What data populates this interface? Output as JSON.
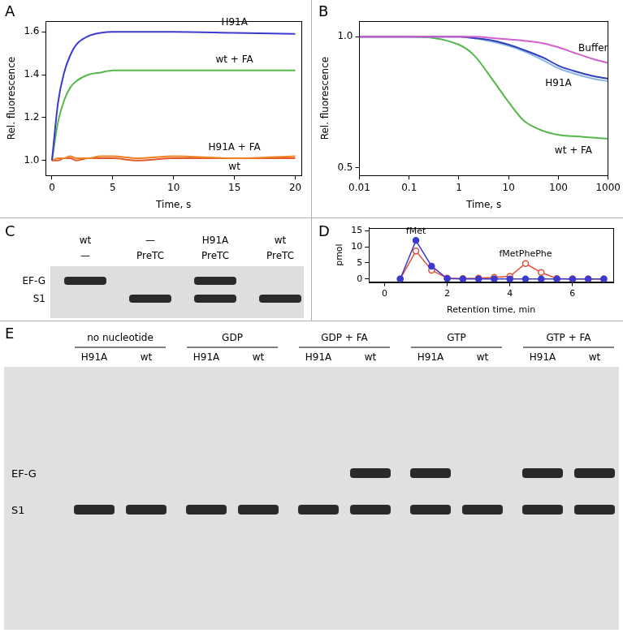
{
  "chart_data": [
    {
      "type": "line",
      "title": "A",
      "x_label": "Time, s",
      "y_label": "Rel. fluorescence",
      "x": [
        0,
        0.5,
        1,
        1.5,
        2,
        3,
        4,
        5,
        7,
        10,
        15,
        20
      ],
      "xlim": [
        -0.5,
        20.5
      ],
      "xticks": [
        0,
        5,
        10,
        15,
        20
      ],
      "ylim": [
        0.93,
        1.65
      ],
      "yticks": [
        {
          "value": 1,
          "label": "1.0"
        },
        1.2,
        1.4,
        1.6
      ],
      "grid": false,
      "series": [
        {
          "name": "H91A",
          "color": "#3a3acf",
          "line_style": "solid",
          "values": [
            1.0,
            1.27,
            1.41,
            1.49,
            1.54,
            1.58,
            1.595,
            1.6,
            1.6,
            1.6,
            1.595,
            1.59
          ]
        },
        {
          "name": "wt + FA",
          "color": "#55b84a",
          "line_style": "solid",
          "values": [
            1.0,
            1.18,
            1.28,
            1.34,
            1.37,
            1.4,
            1.41,
            1.42,
            1.42,
            1.42,
            1.42,
            1.42
          ]
        },
        {
          "name": "H91A + FA",
          "color": "#f08020",
          "line_style": "solid",
          "values": [
            1.0,
            1.01,
            1.01,
            1.02,
            1.01,
            1.01,
            1.02,
            1.02,
            1.01,
            1.02,
            1.01,
            1.02
          ]
        },
        {
          "name": "wt",
          "color": "#e05a30",
          "line_style": "solid",
          "values": [
            1.0,
            1.0,
            1.01,
            1.01,
            1.0,
            1.01,
            1.01,
            1.01,
            1.0,
            1.01,
            1.01,
            1.01
          ]
        }
      ]
    },
    {
      "type": "line",
      "title": "B",
      "x_label": "Time, s",
      "y_label": "Rel. fluorescence",
      "log": "x",
      "x": [
        0.01,
        0.1,
        1,
        2,
        5,
        10,
        20,
        50,
        100,
        200,
        500,
        1000
      ],
      "xlim": [
        0.01,
        1000
      ],
      "xticks": [
        0.01,
        0.1,
        1,
        10,
        100,
        1000
      ],
      "ylim": [
        0.47,
        1.06
      ],
      "yticks": [
        0.5,
        {
          "value": 1,
          "label": "1.0"
        }
      ],
      "grid": false,
      "series": [
        {
          "name": "Buffer",
          "color": "#d060d0",
          "line_style": "solid",
          "values": [
            1,
            1,
            1,
            1,
            0.995,
            0.99,
            0.985,
            0.975,
            0.96,
            0.94,
            0.915,
            0.9
          ]
        },
        {
          "name": "H91A",
          "color": "#2f3fb8",
          "line_style": "solid",
          "values": [
            1,
            1,
            1,
            0.995,
            0.985,
            0.97,
            0.95,
            0.92,
            0.89,
            0.87,
            0.85,
            0.84
          ]
        },
        {
          "color": "#8ab4e8",
          "line_style": "solid",
          "values": [
            1,
            1,
            1,
            0.995,
            0.98,
            0.965,
            0.945,
            0.91,
            0.88,
            0.86,
            0.84,
            0.83
          ]
        },
        {
          "name": "wt + FA",
          "color": "#55b84a",
          "line_style": "solid",
          "values": [
            1,
            1,
            0.97,
            0.93,
            0.83,
            0.75,
            0.68,
            0.64,
            0.625,
            0.62,
            0.615,
            0.61
          ]
        }
      ]
    },
    {
      "type": "line",
      "title": "D",
      "x_label": "Retention time, min",
      "y_label": "pmol",
      "x": [
        0.5,
        1,
        1.5,
        2,
        2.5,
        3,
        3.5,
        4,
        4.5,
        5,
        5.5,
        6,
        6.5,
        7
      ],
      "xlim": [
        -0.5,
        7.3
      ],
      "xticks": [
        0,
        2,
        4,
        6
      ],
      "ylim": [
        -1,
        16
      ],
      "yticks": [
        0,
        5,
        10,
        15
      ],
      "grid": false,
      "annotations": [
        {
          "text": "fMet",
          "x": 1
        },
        {
          "text": "fMetPhePhe",
          "x": 4.5
        }
      ],
      "series": [
        {
          "color": "#3a3acf",
          "marker": "circle",
          "line_style": "solid",
          "values": [
            0,
            12,
            4,
            0.1,
            0,
            0,
            0,
            0,
            0,
            0,
            0,
            0,
            0,
            0
          ]
        },
        {
          "color": "#e0503a",
          "marker": "circle_open",
          "line_style": "solid",
          "values": [
            0,
            8.7,
            2.7,
            0.2,
            0.1,
            0.2,
            0.5,
            0.8,
            4.8,
            2.0,
            0.1,
            0,
            0,
            0
          ]
        }
      ]
    }
  ],
  "gels": [
    {
      "title": "C",
      "row_labels": [
        "EF-G",
        "S1"
      ],
      "lanes": [
        {
          "labels": [
            "wt",
            "—"
          ],
          "bands": [
            "EF-G"
          ]
        },
        {
          "labels": [
            "—",
            "PreTC"
          ],
          "bands": [
            "S1"
          ]
        },
        {
          "labels": [
            "H91A",
            "PreTC"
          ],
          "bands": [
            "EF-G",
            "S1"
          ]
        },
        {
          "labels": [
            "wt",
            "PreTC"
          ],
          "bands": [
            "S1"
          ]
        }
      ]
    },
    {
      "title": "E",
      "row_labels": [
        "EF-G",
        "S1"
      ],
      "groups": [
        {
          "label": "no nucleotide",
          "lanes": [
            {
              "label": "H91A",
              "bands": [
                "S1"
              ]
            },
            {
              "label": "wt",
              "bands": [
                "S1"
              ]
            }
          ]
        },
        {
          "label": "GDP",
          "lanes": [
            {
              "label": "H91A",
              "bands": [
                "S1"
              ]
            },
            {
              "label": "wt",
              "bands": [
                "S1"
              ]
            }
          ]
        },
        {
          "label": "GDP + FA",
          "lanes": [
            {
              "label": "H91A",
              "bands": [
                "S1"
              ]
            },
            {
              "label": "wt",
              "bands": [
                "EF-G",
                "S1"
              ]
            }
          ]
        },
        {
          "label": "GTP",
          "lanes": [
            {
              "label": "H91A",
              "bands": [
                "EF-G",
                "S1"
              ]
            },
            {
              "label": "wt",
              "bands": [
                "S1"
              ]
            }
          ]
        },
        {
          "label": "GTP + FA",
          "lanes": [
            {
              "label": "H91A",
              "bands": [
                "EF-G",
                "S1"
              ]
            },
            {
              "label": "wt",
              "bands": [
                "EF-G",
                "S1"
              ]
            }
          ]
        }
      ]
    }
  ]
}
